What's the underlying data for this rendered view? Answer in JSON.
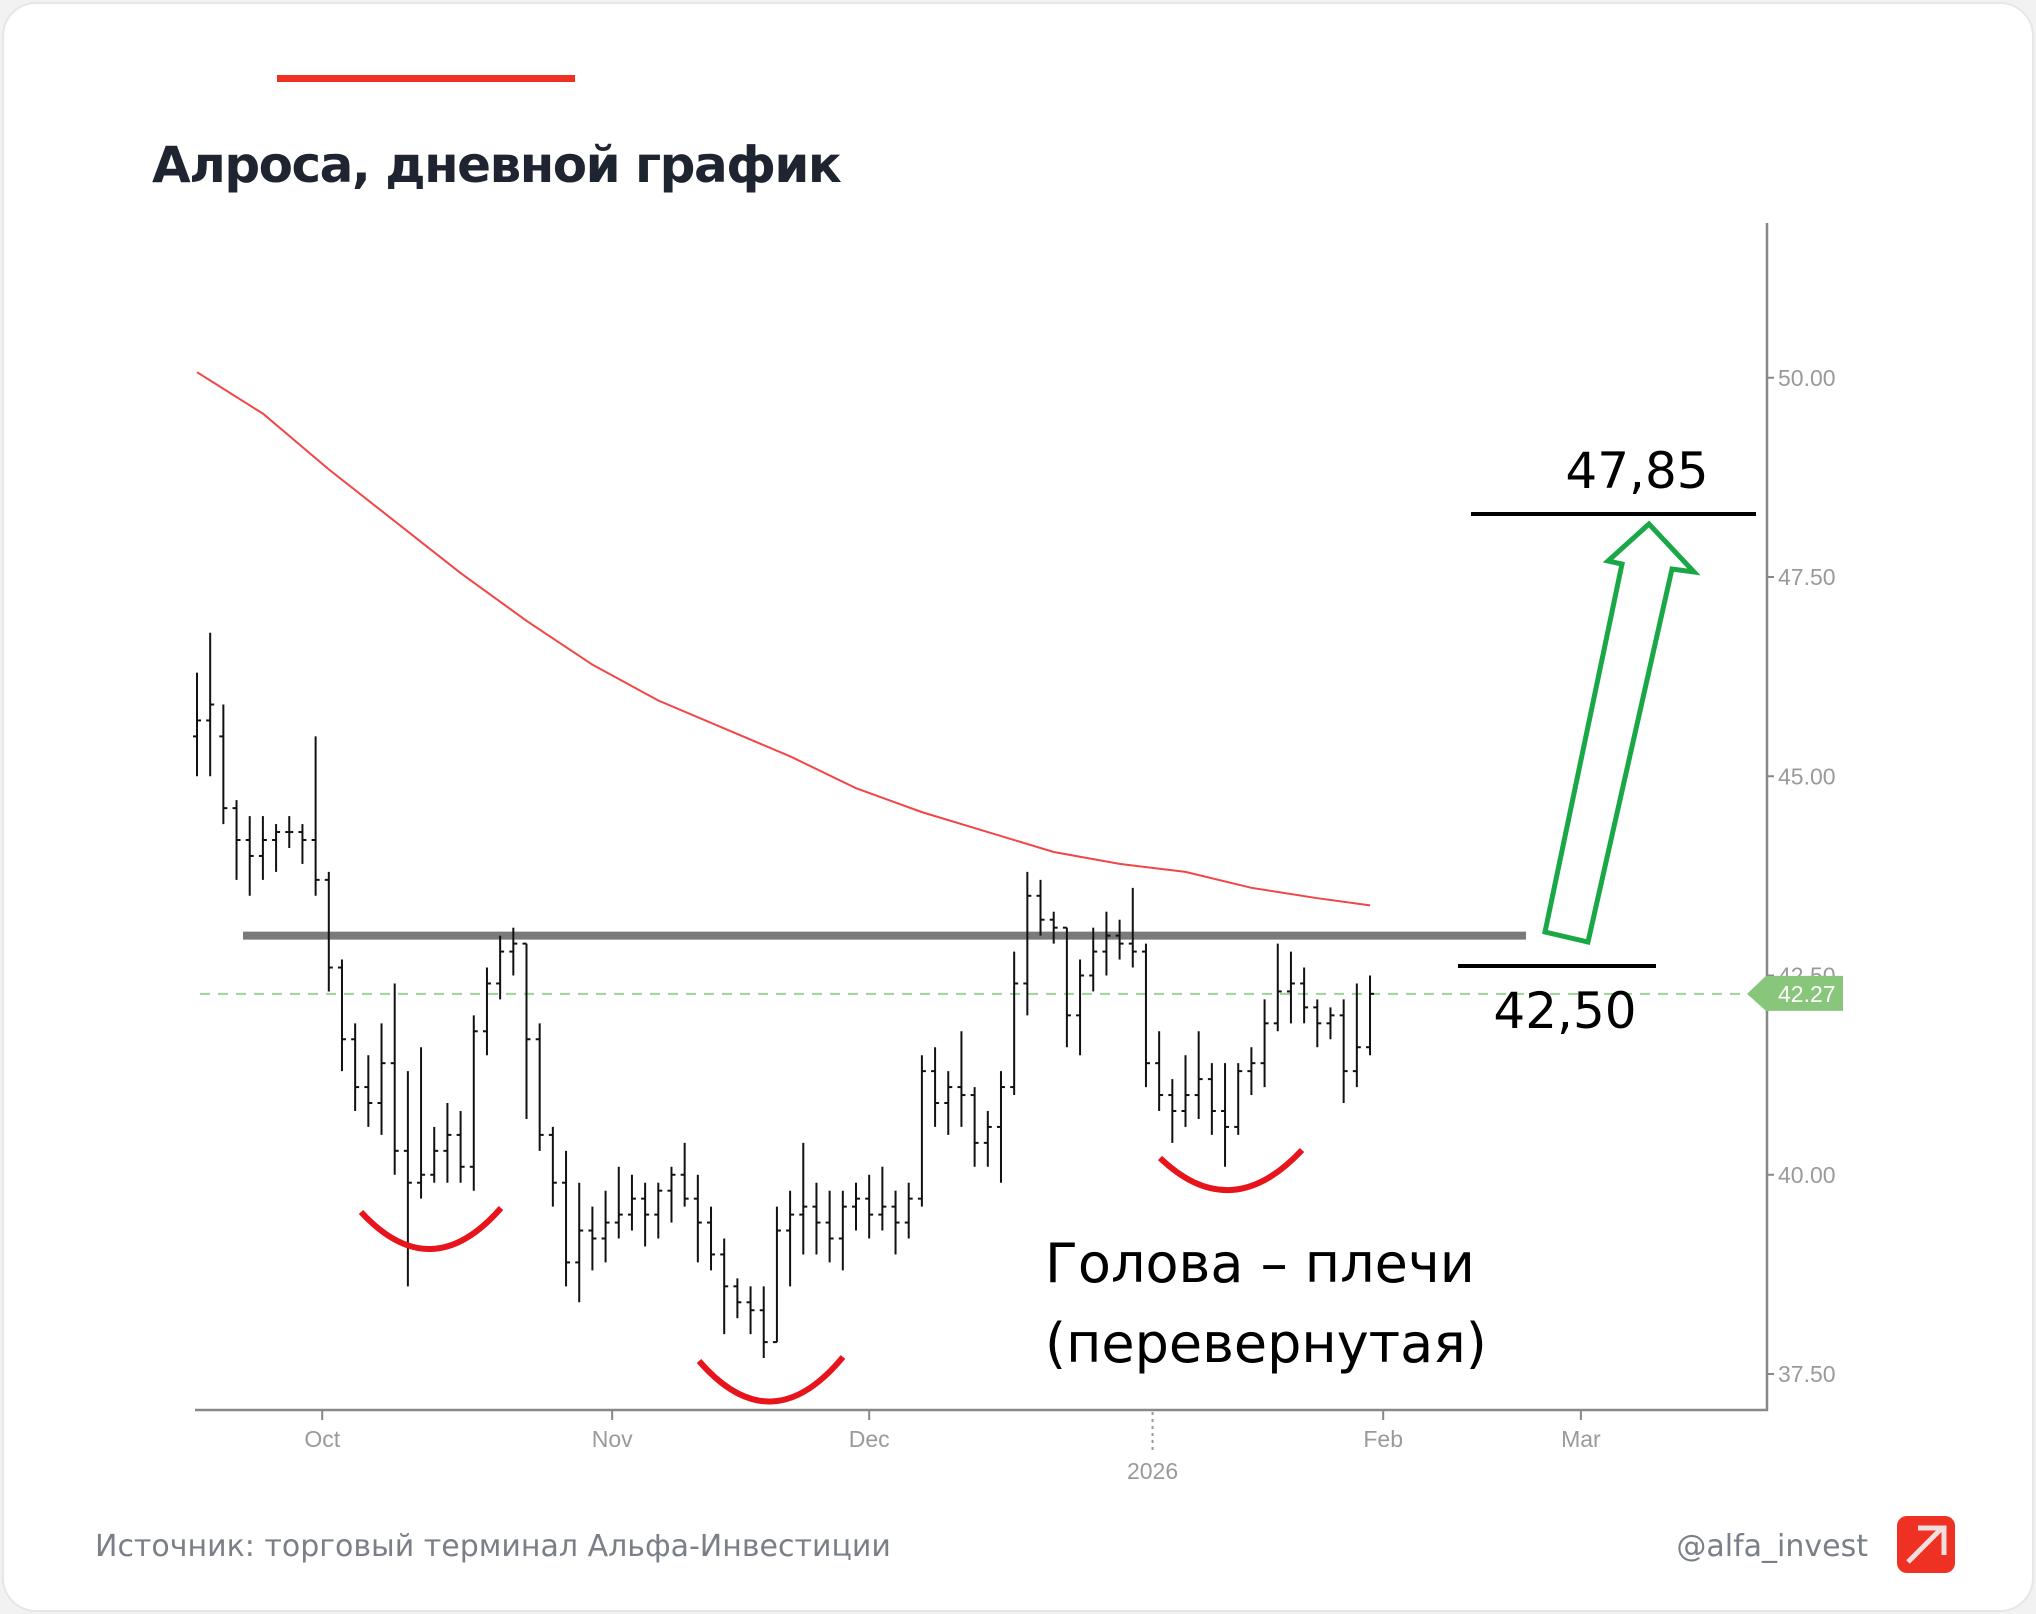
{
  "header": {
    "title": "Алроса, дневной график",
    "accent_color": "#ef3124"
  },
  "footer": {
    "source": "Источник: торговый терминал Альфа-Инвестиции",
    "handle": "@alfa_invest",
    "logo_color": "#ef3124"
  },
  "annotations": {
    "target_label": "47,85",
    "neckline_label": "42,50",
    "pattern_line1": "Голова – плечи",
    "pattern_line2": "(перевернутая)",
    "arrow_color": "#19a845",
    "arc_color": "#e8141c"
  },
  "chart_data": {
    "type": "ohlc",
    "ylim": [
      37.2,
      51.8
    ],
    "y_ticks": [
      "37.50",
      "40.00",
      "42.50",
      "45.00",
      "47.50",
      "50.00"
    ],
    "x_ticks": [
      {
        "label": "Oct",
        "at_bar": 9.5
      },
      {
        "label": "Nov",
        "at_bar": 31.5
      },
      {
        "label": "Dec",
        "at_bar": 51
      },
      {
        "label": "2026",
        "at_bar": 72.5,
        "second_row": true
      },
      {
        "label": "Feb",
        "at_bar": 90
      },
      {
        "label": "Mar",
        "at_bar": 105
      }
    ],
    "xlim": [
      -1,
      119
    ],
    "last_price": 42.27,
    "last_price_color": "#88c77b",
    "resistance_level": 43.0,
    "target_level": 47.85,
    "neckline_level": 42.5,
    "ma_color": "#f24646",
    "ma_points": [
      [
        0,
        50.07
      ],
      [
        5,
        49.55
      ],
      [
        10,
        48.85
      ],
      [
        15,
        48.2
      ],
      [
        20,
        47.55
      ],
      [
        25,
        46.95
      ],
      [
        30,
        46.4
      ],
      [
        35,
        45.95
      ],
      [
        40,
        45.6
      ],
      [
        45,
        45.25
      ],
      [
        50,
        44.85
      ],
      [
        55,
        44.55
      ],
      [
        60,
        44.3
      ],
      [
        65,
        44.05
      ],
      [
        70,
        43.9
      ],
      [
        75,
        43.8
      ],
      [
        80,
        43.6
      ],
      [
        85,
        43.47
      ],
      [
        89,
        43.38
      ]
    ],
    "bars": [
      [
        45.5,
        46.3,
        45.0,
        45.7
      ],
      [
        45.7,
        46.8,
        45.0,
        45.9
      ],
      [
        45.5,
        45.9,
        44.4,
        44.6
      ],
      [
        44.6,
        44.7,
        43.7,
        44.2
      ],
      [
        44.2,
        44.5,
        43.5,
        44.0
      ],
      [
        44.0,
        44.5,
        43.7,
        44.2
      ],
      [
        44.2,
        44.4,
        43.8,
        44.3
      ],
      [
        44.3,
        44.5,
        44.1,
        44.3
      ],
      [
        44.3,
        44.4,
        43.9,
        44.2
      ],
      [
        44.2,
        45.5,
        43.5,
        43.7
      ],
      [
        43.7,
        43.8,
        42.3,
        42.6
      ],
      [
        42.6,
        42.7,
        41.3,
        41.7
      ],
      [
        41.7,
        41.9,
        40.8,
        41.1
      ],
      [
        41.1,
        41.5,
        40.6,
        40.9
      ],
      [
        40.9,
        41.9,
        40.5,
        41.4
      ],
      [
        41.4,
        42.4,
        40.0,
        40.3
      ],
      [
        40.3,
        41.3,
        38.6,
        39.9
      ],
      [
        39.9,
        41.6,
        39.7,
        40.0
      ],
      [
        40.0,
        40.6,
        39.9,
        40.3
      ],
      [
        40.3,
        40.9,
        39.9,
        40.5
      ],
      [
        40.5,
        40.8,
        39.9,
        40.1
      ],
      [
        40.1,
        42.0,
        39.8,
        41.8
      ],
      [
        41.8,
        42.6,
        41.5,
        42.4
      ],
      [
        42.4,
        43.0,
        42.2,
        42.8
      ],
      [
        42.8,
        43.1,
        42.5,
        42.9
      ],
      [
        42.9,
        42.9,
        40.7,
        41.7
      ],
      [
        41.7,
        41.9,
        40.3,
        40.5
      ],
      [
        40.5,
        40.6,
        39.6,
        39.9
      ],
      [
        39.9,
        40.3,
        38.6,
        38.9
      ],
      [
        38.9,
        39.9,
        38.4,
        39.3
      ],
      [
        39.3,
        39.6,
        38.8,
        39.2
      ],
      [
        39.2,
        39.8,
        38.9,
        39.4
      ],
      [
        39.4,
        40.1,
        39.2,
        39.5
      ],
      [
        39.5,
        40.0,
        39.3,
        39.7
      ],
      [
        39.7,
        39.9,
        39.1,
        39.5
      ],
      [
        39.5,
        39.9,
        39.2,
        39.8
      ],
      [
        39.8,
        40.1,
        39.4,
        40.0
      ],
      [
        40.0,
        40.4,
        39.6,
        39.7
      ],
      [
        39.7,
        40.0,
        38.9,
        39.4
      ],
      [
        39.4,
        39.6,
        38.8,
        39.0
      ],
      [
        39.0,
        39.2,
        38.0,
        38.6
      ],
      [
        38.6,
        38.7,
        38.2,
        38.4
      ],
      [
        38.4,
        38.6,
        38.0,
        38.3
      ],
      [
        38.3,
        38.6,
        37.7,
        37.9
      ],
      [
        37.9,
        39.6,
        37.9,
        39.3
      ],
      [
        39.3,
        39.8,
        38.6,
        39.5
      ],
      [
        39.5,
        40.4,
        39.0,
        39.6
      ],
      [
        39.6,
        39.9,
        39.0,
        39.4
      ],
      [
        39.4,
        39.8,
        38.9,
        39.2
      ],
      [
        39.2,
        39.8,
        38.8,
        39.6
      ],
      [
        39.6,
        39.9,
        39.3,
        39.7
      ],
      [
        39.7,
        40.0,
        39.2,
        39.5
      ],
      [
        39.5,
        40.1,
        39.3,
        39.6
      ],
      [
        39.6,
        39.8,
        39.0,
        39.4
      ],
      [
        39.4,
        39.9,
        39.2,
        39.7
      ],
      [
        39.7,
        41.5,
        39.6,
        41.3
      ],
      [
        41.3,
        41.6,
        40.6,
        40.9
      ],
      [
        40.9,
        41.3,
        40.5,
        41.1
      ],
      [
        41.1,
        41.8,
        40.6,
        41.0
      ],
      [
        41.0,
        41.1,
        40.1,
        40.4
      ],
      [
        40.4,
        40.8,
        40.1,
        40.6
      ],
      [
        40.6,
        41.3,
        39.9,
        41.1
      ],
      [
        41.1,
        42.8,
        41.0,
        42.4
      ],
      [
        42.4,
        43.8,
        42.0,
        43.5
      ],
      [
        43.5,
        43.7,
        43.0,
        43.2
      ],
      [
        43.2,
        43.3,
        42.9,
        43.1
      ],
      [
        43.1,
        43.1,
        41.6,
        42.0
      ],
      [
        42.0,
        42.7,
        41.5,
        42.5
      ],
      [
        42.5,
        43.1,
        42.3,
        42.8
      ],
      [
        42.8,
        43.3,
        42.5,
        43.0
      ],
      [
        43.0,
        43.2,
        42.7,
        42.9
      ],
      [
        42.9,
        43.6,
        42.6,
        42.8
      ],
      [
        42.8,
        42.9,
        41.1,
        41.4
      ],
      [
        41.4,
        41.8,
        40.8,
        41.0
      ],
      [
        41.0,
        41.2,
        40.4,
        40.8
      ],
      [
        40.8,
        41.5,
        40.6,
        41.0
      ],
      [
        41.0,
        41.8,
        40.7,
        41.2
      ],
      [
        41.2,
        41.4,
        40.5,
        40.8
      ],
      [
        40.8,
        41.4,
        40.1,
        40.6
      ],
      [
        40.6,
        41.4,
        40.5,
        41.3
      ],
      [
        41.3,
        41.6,
        41.0,
        41.4
      ],
      [
        41.4,
        42.2,
        41.1,
        41.9
      ],
      [
        41.9,
        42.9,
        41.8,
        42.3
      ],
      [
        42.3,
        42.8,
        41.9,
        42.4
      ],
      [
        42.4,
        42.6,
        41.9,
        42.1
      ],
      [
        42.1,
        42.2,
        41.6,
        41.9
      ],
      [
        41.9,
        42.1,
        41.7,
        42.0
      ],
      [
        42.0,
        42.2,
        40.9,
        41.3
      ],
      [
        41.3,
        42.4,
        41.1,
        41.6
      ],
      [
        41.6,
        42.5,
        41.5,
        42.27
      ]
    ]
  }
}
